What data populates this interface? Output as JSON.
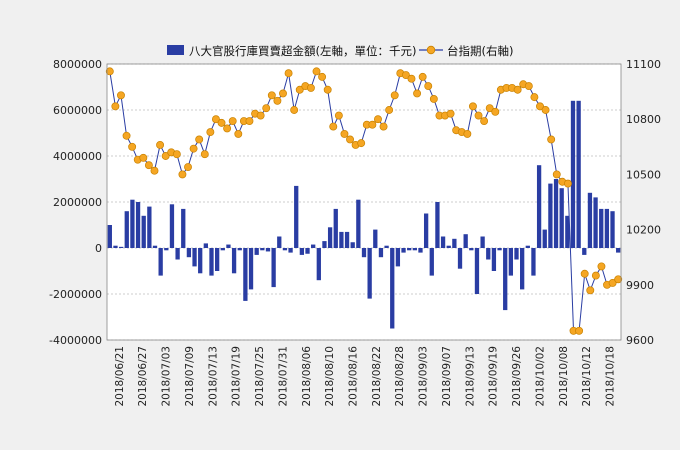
{
  "chart_data": {
    "type": "bar+line",
    "legend": {
      "position": "top-center",
      "bar_label": "八大官股行庫買賣超金額(左軸，單位：千元)",
      "line_label": "台指期(右軸)"
    },
    "left_axis": {
      "ylim": [
        -4000000,
        8000000
      ],
      "ticks": [
        "8000000",
        "6000000",
        "4000000",
        "2000000",
        "0",
        "-2000000",
        "-4000000"
      ]
    },
    "right_axis": {
      "ylim": [
        9600,
        11100
      ],
      "ticks": [
        "11100",
        "10800",
        "10500",
        "10200",
        "9900",
        "9600"
      ]
    },
    "x_labels": [
      "2018/06/21",
      "2018/06/27",
      "2018/07/03",
      "2018/07/09",
      "2018/07/13",
      "2018/07/19",
      "2018/07/25",
      "2018/07/31",
      "2018/08/06",
      "2018/08/10",
      "2018/08/16",
      "2018/08/22",
      "2018/08/28",
      "2018/09/03",
      "2018/09/07",
      "2018/09/13",
      "2018/09/19",
      "2018/09/26",
      "2018/10/02",
      "2018/10/08",
      "2018/10/12",
      "2018/10/18"
    ],
    "bar_values": [
      1000000,
      100000,
      50000,
      1600000,
      2100000,
      2000000,
      1400000,
      1800000,
      100000,
      -1200000,
      -100000,
      1900000,
      -500000,
      1700000,
      -400000,
      -800000,
      -1100000,
      200000,
      -1200000,
      -1000000,
      -100000,
      150000,
      -1100000,
      -100000,
      -2300000,
      -1800000,
      -300000,
      -100000,
      -150000,
      -1700000,
      500000,
      -100000,
      -200000,
      2700000,
      -300000,
      -250000,
      150000,
      -1400000,
      300000,
      900000,
      1700000,
      700000,
      700000,
      250000,
      2100000,
      -400000,
      -2200000,
      800000,
      -400000,
      100000,
      -3500000,
      -800000,
      -200000,
      -100000,
      -100000,
      -200000,
      1500000,
      -1200000,
      2000000,
      500000,
      100000,
      400000,
      -900000,
      600000,
      -100000,
      -2000000,
      500000,
      -500000,
      -1000000,
      -100000,
      -2700000,
      -1200000,
      -500000,
      -1800000,
      100000,
      -1200000,
      3600000,
      800000,
      2800000,
      3000000,
      2600000,
      1400000,
      6400000,
      6400000,
      -300000,
      2400000,
      2200000,
      1700000,
      1700000,
      1600000,
      -200000
    ],
    "line_values": [
      11060,
      10870,
      10930,
      10710,
      10650,
      10580,
      10590,
      10550,
      10520,
      10660,
      10600,
      10620,
      10610,
      10500,
      10540,
      10640,
      10690,
      10610,
      10730,
      10800,
      10780,
      10750,
      10790,
      10720,
      10790,
      10790,
      10830,
      10820,
      10860,
      10930,
      10900,
      10940,
      11050,
      10850,
      10960,
      10980,
      10970,
      11060,
      11030,
      10960,
      10760,
      10820,
      10720,
      10690,
      10660,
      10670,
      10770,
      10770,
      10800,
      10760,
      10850,
      10930,
      11050,
      11040,
      11020,
      10940,
      11030,
      10980,
      10910,
      10820,
      10820,
      10830,
      10740,
      10730,
      10720,
      10870,
      10820,
      10790,
      10860,
      10840,
      10960,
      10970,
      10970,
      10960,
      10990,
      10980,
      10920,
      10870,
      10850,
      10690,
      10500,
      10460,
      10450,
      9650,
      9650,
      9960,
      9870,
      9950,
      10000,
      9900,
      9910,
      9930
    ]
  }
}
